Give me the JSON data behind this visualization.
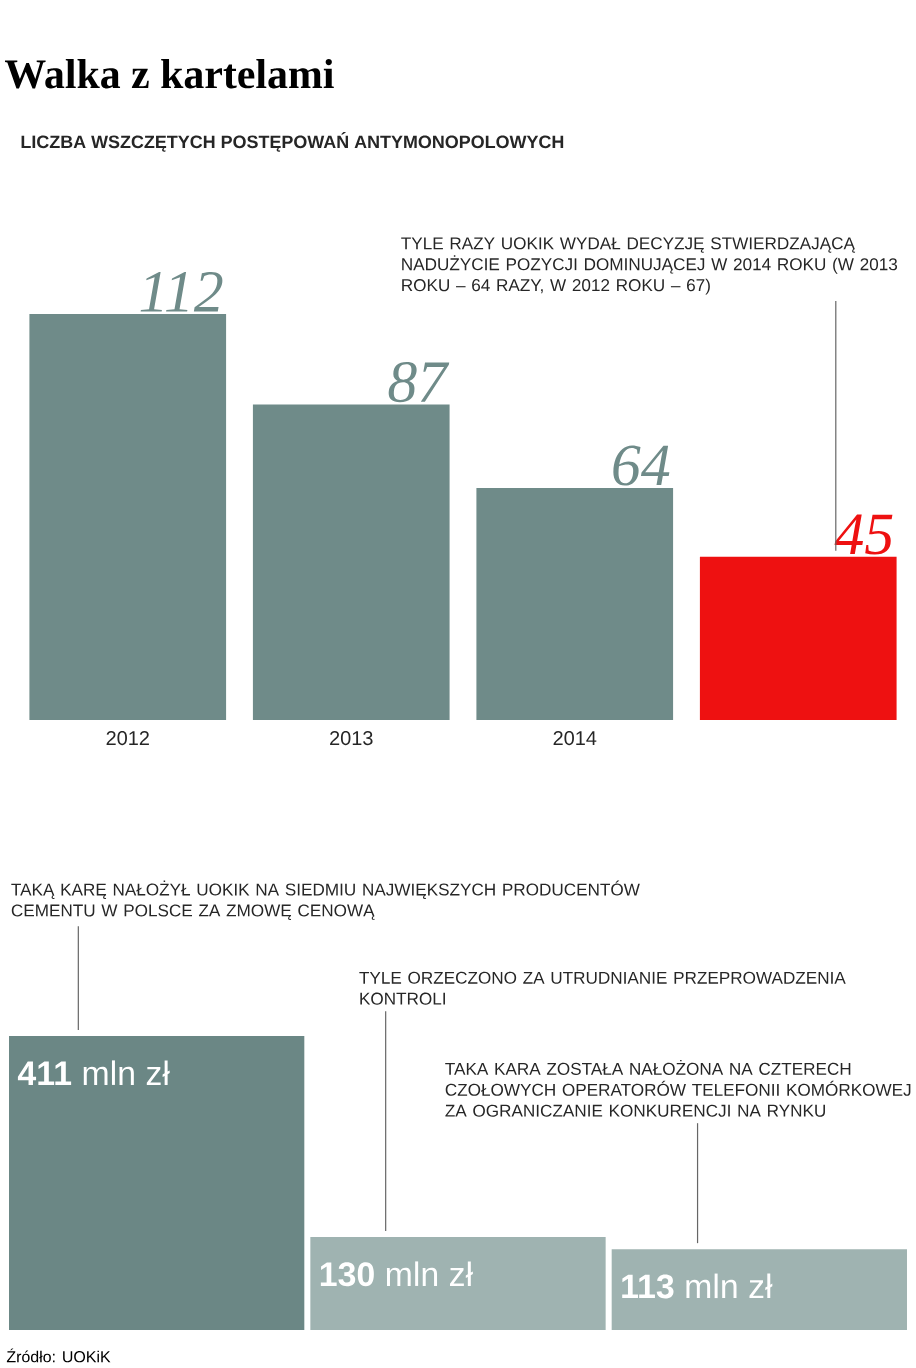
{
  "chart_data": [
    {
      "type": "bar",
      "title": "Walka z kartelami",
      "subtitle": "LICZBA WSZCZĘTYCH POSTĘPOWAŃ ANTYMONOPOLOWYCH",
      "categories": [
        "2012",
        "2013",
        "2014",
        null
      ],
      "values": [
        112,
        87,
        64,
        45
      ],
      "colors": [
        "#6f8b89",
        "#6f8b89",
        "#6f8b89",
        "#ee1111"
      ],
      "data_labels": true,
      "tick_labels": "x",
      "annotations": [
        "TYLE RAZY UOKIK WYDAŁ DECYZJĘ STWIERDZAJĄCĄ NADUŻYCIE POZYCJI DOMINUJĄCEJ W 2014 ROKU (W 2013 ROKU – 64 RAZY, W 2012 ROKU – 67)"
      ]
    },
    {
      "type": "bar",
      "categories": [
        null,
        null,
        null
      ],
      "values": [
        411,
        130,
        113
      ],
      "colors": [
        "#6b8785",
        "#9fb3b1",
        "#9fb3b1"
      ],
      "value_labels": [
        "**411** mln zł",
        "**130** mln zł",
        "**113** mln zł"
      ],
      "tick_labels": false,
      "annotations": [
        "TAKĄ KARĘ NAŁOŻYŁ UOKIK NA SIEDMIU NAJWIĘKSZYCH PRODUCENTÓW CEMENTU W POLSCE ZA ZMOWĘ CENOWĄ",
        "TYLE ORZECZONO ZA UTRUDNIANIE PRZEPROWADZENIA KONTROLI",
        "TAKA KARA ZOSTAŁA NAŁOŻONA NA CZTERECH CZOŁOWYCH OPERATORÓW TELEFONII KOMÓRKOWEJ ZA OGRANICZANIE KONKURENCJI NA RYNKU",
        "Źródło: UOKiK"
      ]
    }
  ]
}
